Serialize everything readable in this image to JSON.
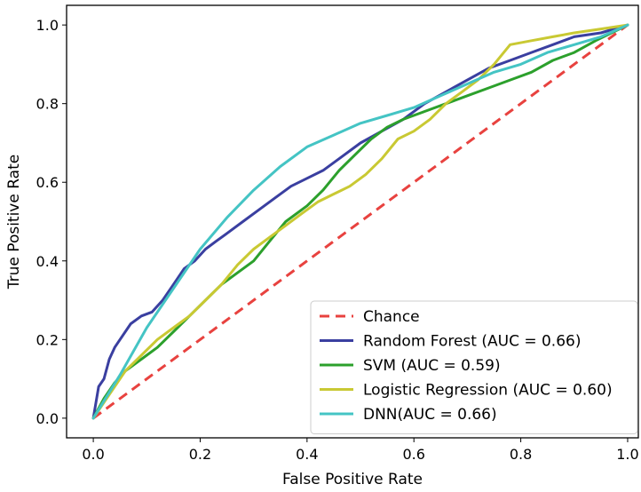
{
  "chart_data": {
    "type": "line",
    "title": "",
    "xlabel": "False Positive Rate",
    "ylabel": "True Positive Rate",
    "xlim": [
      -0.05,
      1.02
    ],
    "ylim": [
      -0.05,
      1.05
    ],
    "xticks": [
      0.0,
      0.2,
      0.4,
      0.6,
      0.8,
      1.0
    ],
    "yticks": [
      0.0,
      0.2,
      0.4,
      0.6,
      0.8,
      1.0
    ],
    "xtick_labels": [
      "0.0",
      "0.2",
      "0.4",
      "0.6",
      "0.8",
      "1.0"
    ],
    "ytick_labels": [
      "0.0",
      "0.2",
      "0.4",
      "0.6",
      "0.8",
      "1.0"
    ],
    "grid": false,
    "legend_position": "lower-right",
    "series": [
      {
        "name": "Chance",
        "color": "#e8423f",
        "dashed": true,
        "x": [
          0.0,
          1.0
        ],
        "y": [
          0.0,
          1.0
        ]
      },
      {
        "name": "Random Forest (AUC = 0.66)",
        "color": "#3a3fa0",
        "dashed": false,
        "x": [
          0.0,
          0.01,
          0.02,
          0.03,
          0.04,
          0.05,
          0.07,
          0.09,
          0.11,
          0.13,
          0.15,
          0.17,
          0.19,
          0.21,
          0.23,
          0.25,
          0.28,
          0.31,
          0.34,
          0.37,
          0.4,
          0.43,
          0.46,
          0.5,
          0.54,
          0.58,
          0.62,
          0.66,
          0.7,
          0.74,
          0.78,
          0.82,
          0.86,
          0.9,
          0.95,
          1.0
        ],
        "y": [
          0.0,
          0.08,
          0.1,
          0.15,
          0.18,
          0.2,
          0.24,
          0.26,
          0.27,
          0.3,
          0.34,
          0.38,
          0.4,
          0.43,
          0.45,
          0.47,
          0.5,
          0.53,
          0.56,
          0.59,
          0.61,
          0.63,
          0.66,
          0.7,
          0.73,
          0.76,
          0.8,
          0.83,
          0.86,
          0.89,
          0.91,
          0.93,
          0.95,
          0.97,
          0.98,
          1.0
        ]
      },
      {
        "name": "SVM (AUC = 0.59)",
        "color": "#2ca02c",
        "dashed": false,
        "x": [
          0.0,
          0.02,
          0.04,
          0.06,
          0.08,
          0.1,
          0.12,
          0.15,
          0.18,
          0.21,
          0.24,
          0.27,
          0.3,
          0.33,
          0.36,
          0.4,
          0.43,
          0.46,
          0.49,
          0.52,
          0.55,
          0.58,
          0.62,
          0.66,
          0.7,
          0.74,
          0.78,
          0.82,
          0.86,
          0.9,
          0.94,
          1.0
        ],
        "y": [
          0.0,
          0.05,
          0.09,
          0.12,
          0.14,
          0.16,
          0.18,
          0.22,
          0.26,
          0.3,
          0.34,
          0.37,
          0.4,
          0.45,
          0.5,
          0.54,
          0.58,
          0.63,
          0.67,
          0.71,
          0.74,
          0.76,
          0.78,
          0.8,
          0.82,
          0.84,
          0.86,
          0.88,
          0.91,
          0.93,
          0.96,
          1.0
        ]
      },
      {
        "name": "Logistic Regression (AUC = 0.60)",
        "color": "#c9c933",
        "dashed": false,
        "x": [
          0.0,
          0.03,
          0.06,
          0.09,
          0.12,
          0.15,
          0.18,
          0.21,
          0.24,
          0.27,
          0.3,
          0.33,
          0.36,
          0.39,
          0.42,
          0.45,
          0.48,
          0.51,
          0.54,
          0.57,
          0.6,
          0.63,
          0.66,
          0.69,
          0.72,
          0.75,
          0.78,
          0.82,
          0.86,
          0.9,
          0.95,
          1.0
        ],
        "y": [
          0.0,
          0.06,
          0.12,
          0.16,
          0.2,
          0.23,
          0.26,
          0.3,
          0.34,
          0.39,
          0.43,
          0.46,
          0.49,
          0.52,
          0.55,
          0.57,
          0.59,
          0.62,
          0.66,
          0.71,
          0.73,
          0.76,
          0.8,
          0.83,
          0.86,
          0.9,
          0.95,
          0.96,
          0.97,
          0.98,
          0.99,
          1.0
        ]
      },
      {
        "name": "DNN(AUC = 0.66)",
        "color": "#44c4c4",
        "dashed": false,
        "x": [
          0.0,
          0.05,
          0.1,
          0.15,
          0.2,
          0.25,
          0.3,
          0.35,
          0.4,
          0.45,
          0.5,
          0.55,
          0.6,
          0.65,
          0.7,
          0.75,
          0.8,
          0.85,
          0.9,
          0.95,
          1.0
        ],
        "y": [
          0.0,
          0.11,
          0.23,
          0.33,
          0.43,
          0.51,
          0.58,
          0.64,
          0.69,
          0.72,
          0.75,
          0.77,
          0.79,
          0.82,
          0.85,
          0.88,
          0.9,
          0.93,
          0.95,
          0.97,
          1.0
        ]
      }
    ]
  }
}
